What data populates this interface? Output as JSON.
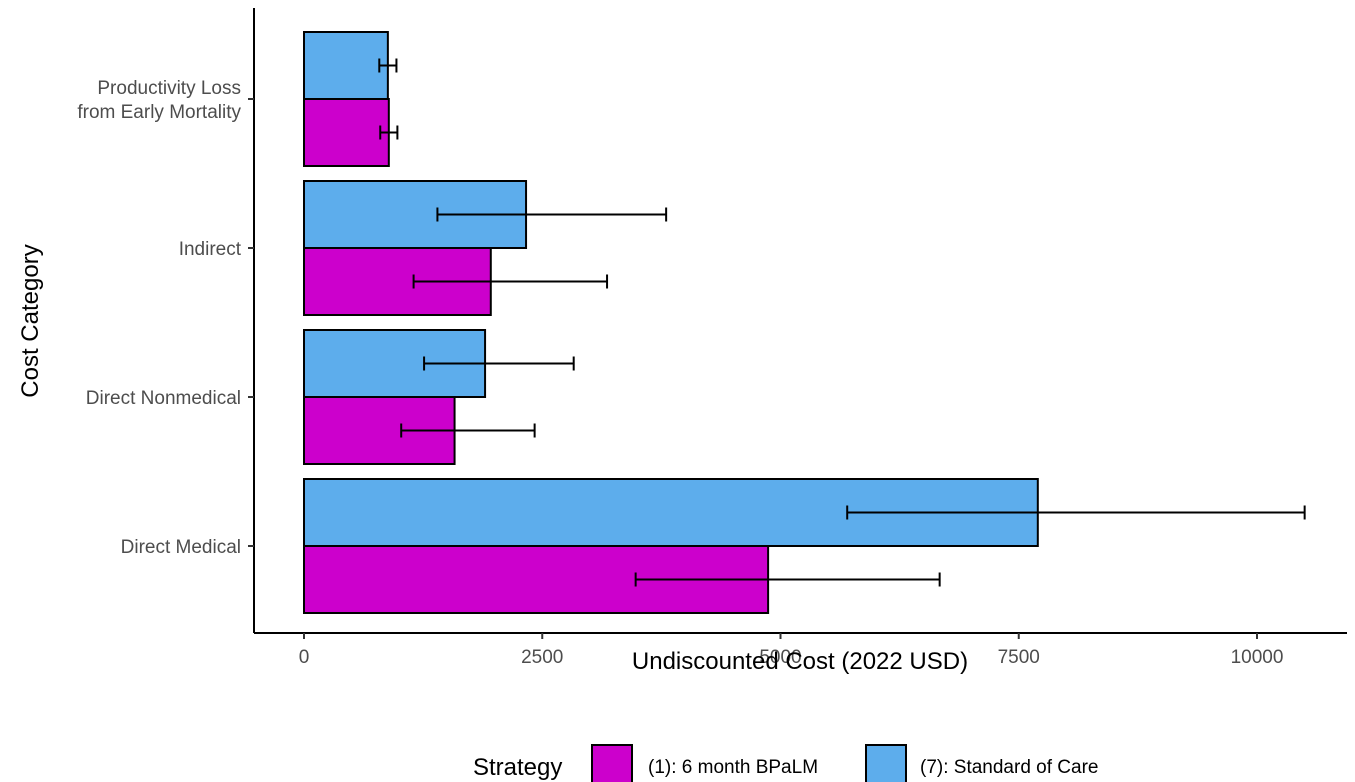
{
  "chart_data": {
    "type": "bar",
    "orientation": "horizontal",
    "categories": [
      "Productivity Loss\nfrom Early Mortality",
      "Indirect",
      "Direct Nonmedical",
      "Direct Medical"
    ],
    "series": [
      {
        "name": "(7): Standard of Care",
        "color": "#5DADEC",
        "values": [
          880,
          2330,
          1900,
          7700
        ],
        "error_low": [
          790,
          1400,
          1260,
          5700
        ],
        "error_high": [
          970,
          3800,
          2830,
          10500
        ]
      },
      {
        "name": "(1): 6 month BPaLM",
        "color": "#CC00CC",
        "values": [
          890,
          1960,
          1580,
          4870
        ],
        "error_low": [
          800,
          1150,
          1020,
          3480
        ],
        "error_high": [
          980,
          3180,
          2420,
          6670
        ]
      }
    ],
    "xlabel": "Undiscounted Cost (2022 USD)",
    "ylabel": "Cost Category",
    "xticks": [
      0,
      2500,
      5000,
      7500,
      10000
    ],
    "xlim": [
      -500,
      10950
    ],
    "legend": {
      "title": "Strategy",
      "position": "bottom",
      "entries": [
        "(1): 6 month BPaLM",
        "(7): Standard of Care"
      ]
    },
    "grid": false
  }
}
